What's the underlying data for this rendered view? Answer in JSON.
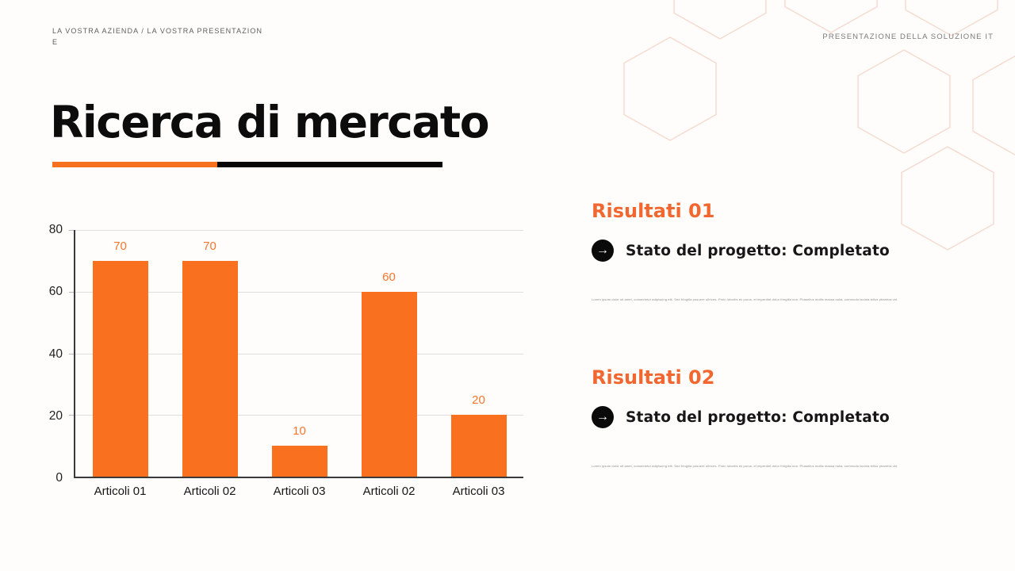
{
  "header": {
    "company_line": "LA VOSTRA AZIENDA / LA VOSTRA PRESENTAZIONE",
    "presentation_label": "PRESENTAZIONE DELLA SOLUZIONE IT"
  },
  "title": "Ricerca di mercato",
  "chart_data": {
    "type": "bar",
    "title": "",
    "xlabel": "",
    "ylabel": "",
    "categories": [
      "Articoli 01",
      "Articoli 02",
      "Articoli 03",
      "Articoli 02",
      "Articoli 03"
    ],
    "values": [
      70,
      70,
      10,
      60,
      20
    ],
    "yticks": [
      80,
      60,
      40,
      20,
      0
    ],
    "ylim": [
      0,
      80
    ],
    "grid": true,
    "legend_position": "none",
    "bar_color": "#F9711F",
    "value_label_color": "#F5772E",
    "axis_tick_color": "#222222"
  },
  "results": [
    {
      "heading": "Risultati 01",
      "status": "Stato del progetto: Completato",
      "note": "Lorem ipsum dolor sit amet, consectetur adipiscing elit. Sed fringilla posuere ultrices. Proin lobortis ex purus, et imperdiet dolor fringilla non. Phasellus mollis massa nulla, commodo lacinia tellus pharetra vel."
    },
    {
      "heading": "Risultati 02",
      "status": "Stato del progetto: Completato",
      "note": "Lorem ipsum dolor sit amet, consectetur adipiscing elit. Sed fringilla posuere ultrices. Proin lobortis ex purus, et imperdiet dolor fringilla non. Phasellus mollis massa nulla, commodo lacinia tellus pharetra vel."
    }
  ],
  "icons": {
    "arrow_right": "→"
  },
  "colors": {
    "accent_orange": "#F9711F",
    "heading_orange": "#F1672F",
    "underline_orange": "#F6711F",
    "underline_black": "#070707",
    "hexagon_stroke": "#F5D9CE",
    "background": "#FFFDFB"
  }
}
